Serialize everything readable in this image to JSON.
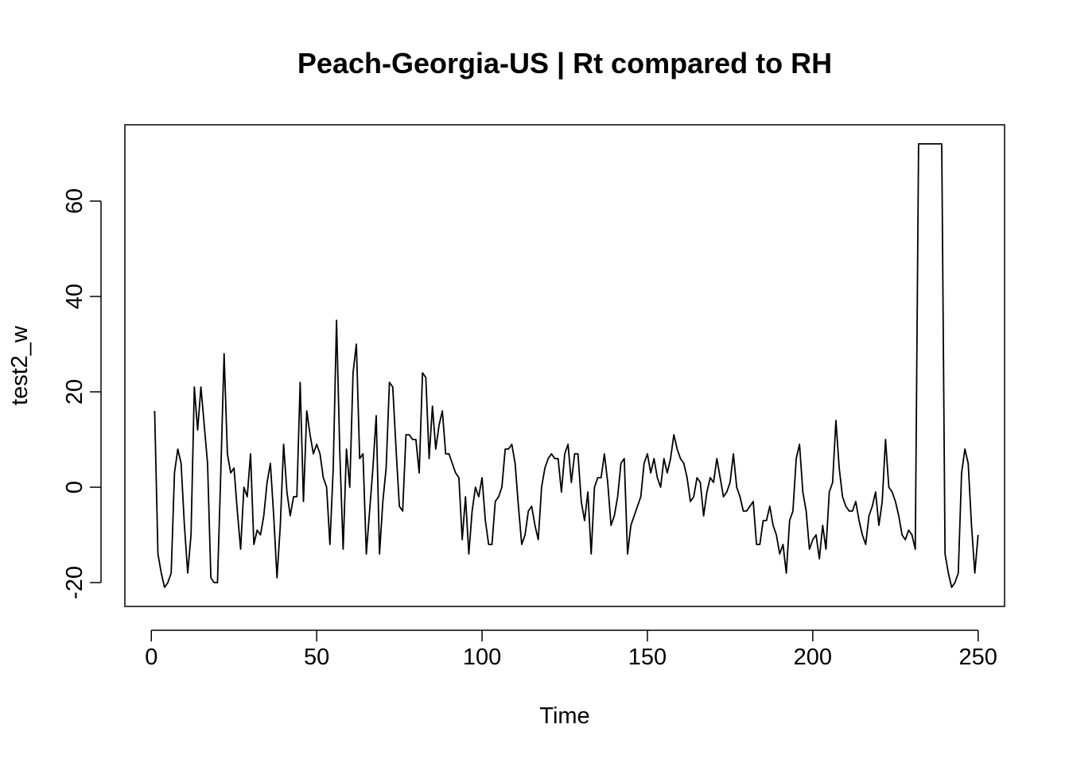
{
  "chart_data": {
    "type": "line",
    "title": "Peach-Georgia-US | Rt compared to RH",
    "xlabel": "Time",
    "ylabel": "test2_w",
    "xlim": [
      -8,
      258
    ],
    "ylim": [
      -25,
      76
    ],
    "xticks": [
      0,
      50,
      100,
      150,
      200,
      250
    ],
    "yticks": [
      -20,
      0,
      20,
      40,
      60
    ],
    "xtick_labels": [
      "0",
      "50",
      "100",
      "150",
      "200",
      "250"
    ],
    "ytick_labels": [
      "-20",
      "0",
      "20",
      "40",
      "60"
    ],
    "line_color": "#000000",
    "grid": false,
    "x_start": 1,
    "series": [
      {
        "values": [
          16,
          -14,
          -18,
          -21,
          -20,
          -18,
          3,
          8,
          5,
          -8,
          -18,
          -10,
          21,
          12,
          21,
          13,
          5,
          -19,
          -20,
          -20,
          3,
          28,
          7,
          3,
          4,
          -5,
          -13,
          0,
          -2,
          7,
          -12,
          -9,
          -10,
          -6,
          1,
          5,
          -6,
          -19,
          -8,
          9,
          -1,
          -6,
          -2,
          -2,
          22,
          -3,
          16,
          11,
          7,
          9,
          7,
          2,
          0,
          -12,
          4,
          35,
          7,
          -13,
          8,
          0,
          24,
          30,
          6,
          7,
          -14,
          -5,
          4,
          15,
          -14,
          -3,
          4,
          22,
          21,
          8,
          -4,
          -5,
          11,
          11,
          10,
          10,
          3,
          24,
          23,
          6,
          17,
          8,
          13,
          16,
          7,
          7,
          5,
          3,
          2,
          -11,
          -2,
          -14,
          -5,
          0,
          -2,
          2,
          -7,
          -12,
          -12,
          -3,
          -2,
          0,
          8,
          8,
          9,
          5,
          -4,
          -12,
          -10,
          -5,
          -4,
          -8,
          -11,
          0,
          4,
          6,
          7,
          6,
          6,
          -1,
          7,
          9,
          1,
          7,
          7,
          -3,
          -7,
          -1,
          -14,
          0,
          2,
          2,
          7,
          1,
          -8,
          -6,
          -2,
          5,
          6,
          -14,
          -8,
          -6,
          -4,
          -2,
          5,
          7,
          3,
          6,
          2,
          0,
          6,
          3,
          6,
          11,
          8,
          6,
          5,
          2,
          -3,
          -2,
          2,
          1,
          -6,
          -1,
          2,
          1,
          6,
          2,
          -2,
          -1,
          1,
          7,
          0,
          -2,
          -5,
          -5,
          -4,
          -3,
          -12,
          -12,
          -7,
          -7,
          -4,
          -8,
          -10,
          -14,
          -12,
          -18,
          -7,
          -5,
          6,
          9,
          -1,
          -5,
          -13,
          -11,
          -10,
          -15,
          -8,
          -13,
          -1,
          1,
          14,
          4,
          -2,
          -4,
          -5,
          -5,
          -3,
          -7,
          -10,
          -12,
          -6,
          -4,
          -1,
          -8,
          -3,
          10,
          0,
          -1,
          -3,
          -6,
          -10,
          -11,
          -9,
          -10,
          -13,
          72,
          72,
          72,
          72,
          72,
          72,
          72,
          72,
          -14,
          -18,
          -21,
          -20,
          -18,
          3,
          8,
          5,
          -8,
          -18,
          -10
        ]
      }
    ]
  }
}
